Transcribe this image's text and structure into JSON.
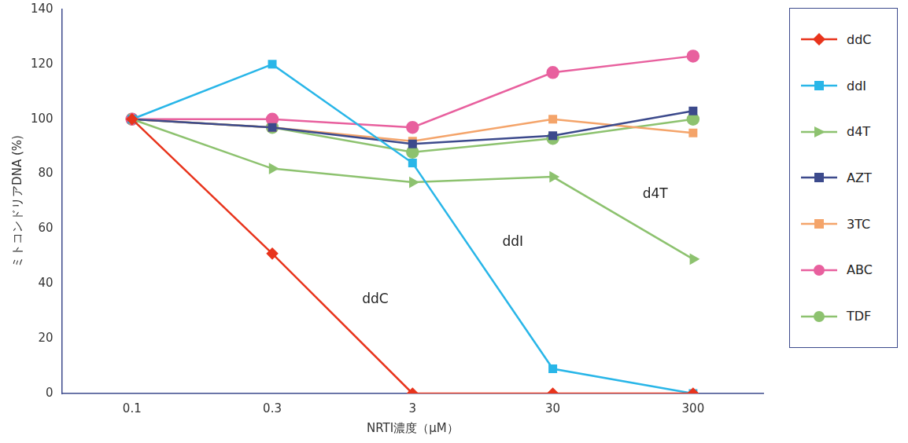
{
  "chart_data": {
    "type": "line",
    "x_label": "NRTI濃度（μM）",
    "y_label": "ミトコンドリアDNA (%)",
    "categories": [
      "0.1",
      "0.3",
      "3",
      "30",
      "300"
    ],
    "ylim": [
      0,
      140
    ],
    "yticks": [
      0,
      20,
      40,
      60,
      80,
      100,
      120,
      140
    ],
    "grid": false,
    "legend": "right",
    "series": [
      {
        "name": "ddC",
        "color": "#e8341c",
        "marker": "diamond",
        "values": [
          100,
          51,
          0,
          0,
          0
        ]
      },
      {
        "name": "ddI",
        "color": "#29b6e8",
        "marker": "square",
        "values": [
          100,
          120,
          84,
          9,
          0
        ]
      },
      {
        "name": "d4T",
        "color": "#8dc26f",
        "marker": "triangle-right",
        "values": [
          100,
          82,
          77,
          79,
          49
        ]
      },
      {
        "name": "AZT",
        "color": "#3c4a8c",
        "marker": "square",
        "values": [
          100,
          97,
          91,
          94,
          103
        ]
      },
      {
        "name": "3TC",
        "color": "#f4a46a",
        "marker": "square",
        "values": [
          100,
          97,
          92,
          100,
          95
        ]
      },
      {
        "name": "ABC",
        "color": "#e8609e",
        "marker": "circle",
        "values": [
          100,
          100,
          97,
          117,
          123
        ]
      },
      {
        "name": "TDF",
        "color": "#8dc26f",
        "marker": "circle",
        "values": [
          100,
          97,
          88,
          93,
          100
        ]
      }
    ],
    "annotations": [
      "ddC",
      "ddI",
      "d4T"
    ]
  }
}
